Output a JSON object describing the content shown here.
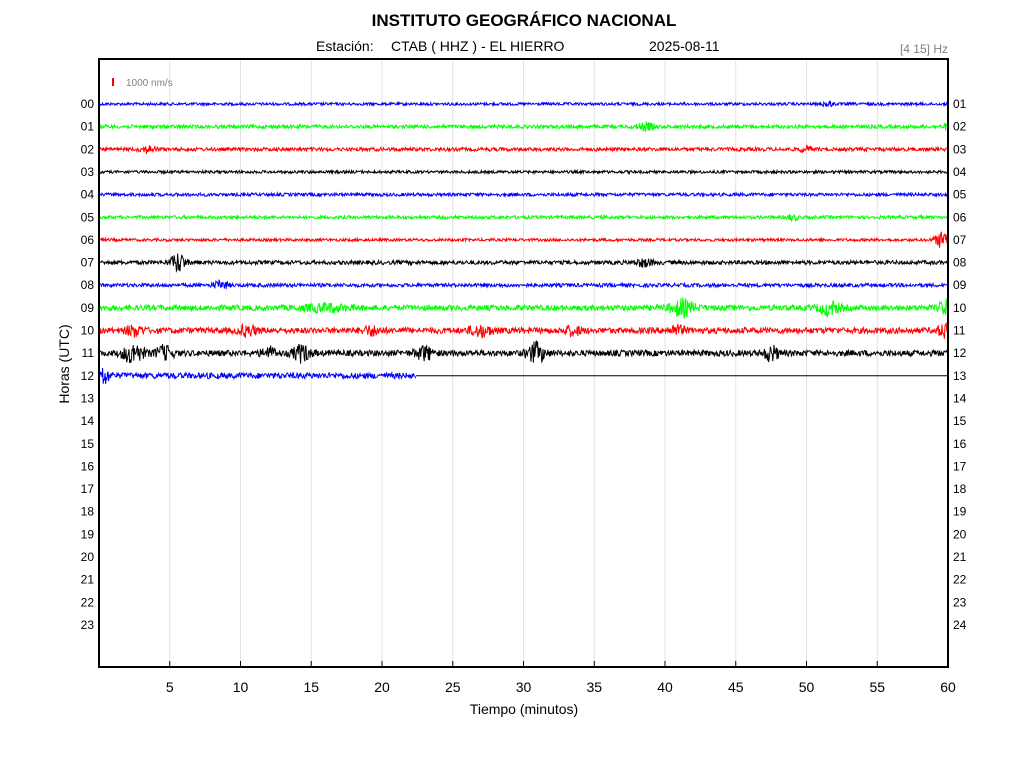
{
  "header": {
    "title": "INSTITUTO GEOGRÁFICO NACIONAL",
    "station_label": "Estación:",
    "station": "CTAB ( HHZ ) - EL HIERRO",
    "date": "2025-08-11",
    "band": "[4 15] Hz"
  },
  "chart_data": {
    "type": "line",
    "xlabel": "Tiempo (minutos)",
    "ylabel": "Horas (UTC)",
    "xlim": [
      0,
      60
    ],
    "x_ticks": [
      "5",
      "10",
      "15",
      "20",
      "25",
      "30",
      "35",
      "40",
      "45",
      "50",
      "55",
      "60"
    ],
    "x_tick_values": [
      5,
      10,
      15,
      20,
      25,
      30,
      35,
      40,
      45,
      50,
      55,
      60
    ],
    "left_hours": [
      "00",
      "01",
      "02",
      "03",
      "04",
      "05",
      "06",
      "07",
      "08",
      "09",
      "10",
      "11",
      "12",
      "13",
      "14",
      "15",
      "16",
      "17",
      "18",
      "19",
      "20",
      "21",
      "22",
      "23"
    ],
    "right_hours": [
      "01",
      "02",
      "03",
      "04",
      "05",
      "06",
      "07",
      "08",
      "09",
      "10",
      "11",
      "12",
      "13",
      "14",
      "15",
      "16",
      "17",
      "18",
      "19",
      "20",
      "21",
      "22",
      "23",
      "24"
    ],
    "grid": true,
    "scale_bar": {
      "label": "1000 nm/s",
      "color": "#ff0000"
    },
    "trace_colors": [
      "#0000ff",
      "#00ff00",
      "#ff0000",
      "#000000"
    ],
    "traces": [
      {
        "hour": "00",
        "color": "#0000ff",
        "end_minute": 60,
        "noise": 0.35,
        "events": [
          [
            51.5,
            0.6,
            0.4
          ]
        ]
      },
      {
        "hour": "01",
        "color": "#00ff00",
        "end_minute": 60,
        "noise": 0.45,
        "events": [
          [
            38.6,
            0.9,
            0.6
          ],
          [
            60,
            0.8,
            0.3
          ]
        ]
      },
      {
        "hour": "02",
        "color": "#ff0000",
        "end_minute": 60,
        "noise": 0.45,
        "events": [
          [
            3.5,
            0.8,
            0.5
          ],
          [
            50.0,
            0.7,
            0.4
          ]
        ]
      },
      {
        "hour": "03",
        "color": "#000000",
        "end_minute": 60,
        "noise": 0.35,
        "events": []
      },
      {
        "hour": "04",
        "color": "#0000ff",
        "end_minute": 60,
        "noise": 0.4,
        "events": []
      },
      {
        "hour": "05",
        "color": "#00ff00",
        "end_minute": 60,
        "noise": 0.4,
        "events": [
          [
            49.0,
            0.7,
            0.4
          ]
        ]
      },
      {
        "hour": "06",
        "color": "#ff0000",
        "end_minute": 60,
        "noise": 0.35,
        "events": [
          [
            59.6,
            2.0,
            0.5
          ]
        ]
      },
      {
        "hour": "07",
        "color": "#000000",
        "end_minute": 60,
        "noise": 0.5,
        "events": [
          [
            5.6,
            2.4,
            0.5
          ],
          [
            38.5,
            0.9,
            0.6
          ]
        ]
      },
      {
        "hour": "08",
        "color": "#0000ff",
        "end_minute": 60,
        "noise": 0.45,
        "events": [
          [
            8.6,
            1.0,
            0.5
          ]
        ]
      },
      {
        "hour": "09",
        "color": "#00ff00",
        "end_minute": 60,
        "noise": 0.7,
        "events": [
          [
            41.2,
            2.0,
            0.8
          ],
          [
            51.6,
            1.6,
            0.7
          ],
          [
            59.8,
            1.8,
            0.4
          ],
          [
            16.0,
            0.8,
            1.5
          ]
        ]
      },
      {
        "hour": "10",
        "color": "#ff0000",
        "end_minute": 60,
        "noise": 0.75,
        "events": [
          [
            2.5,
            1.2,
            0.6
          ],
          [
            10.5,
            1.2,
            0.6
          ],
          [
            19.3,
            1.0,
            0.6
          ],
          [
            27.0,
            1.2,
            0.8
          ],
          [
            33.5,
            1.0,
            0.6
          ],
          [
            40.8,
            1.0,
            0.6
          ],
          [
            59.7,
            1.5,
            0.4
          ]
        ]
      },
      {
        "hour": "11",
        "color": "#000000",
        "end_minute": 60,
        "noise": 0.75,
        "events": [
          [
            2.4,
            2.4,
            0.7
          ],
          [
            4.6,
            1.6,
            0.6
          ],
          [
            12.0,
            1.3,
            0.5
          ],
          [
            14.3,
            2.0,
            0.6
          ],
          [
            23.0,
            1.6,
            0.6
          ],
          [
            30.9,
            2.4,
            0.6
          ],
          [
            47.5,
            1.8,
            0.5
          ]
        ]
      },
      {
        "hour": "12",
        "color": "#0000ff",
        "end_minute": 22.4,
        "noise": 0.75,
        "events": [
          [
            0.2,
            2.2,
            0.5
          ]
        ]
      }
    ]
  }
}
